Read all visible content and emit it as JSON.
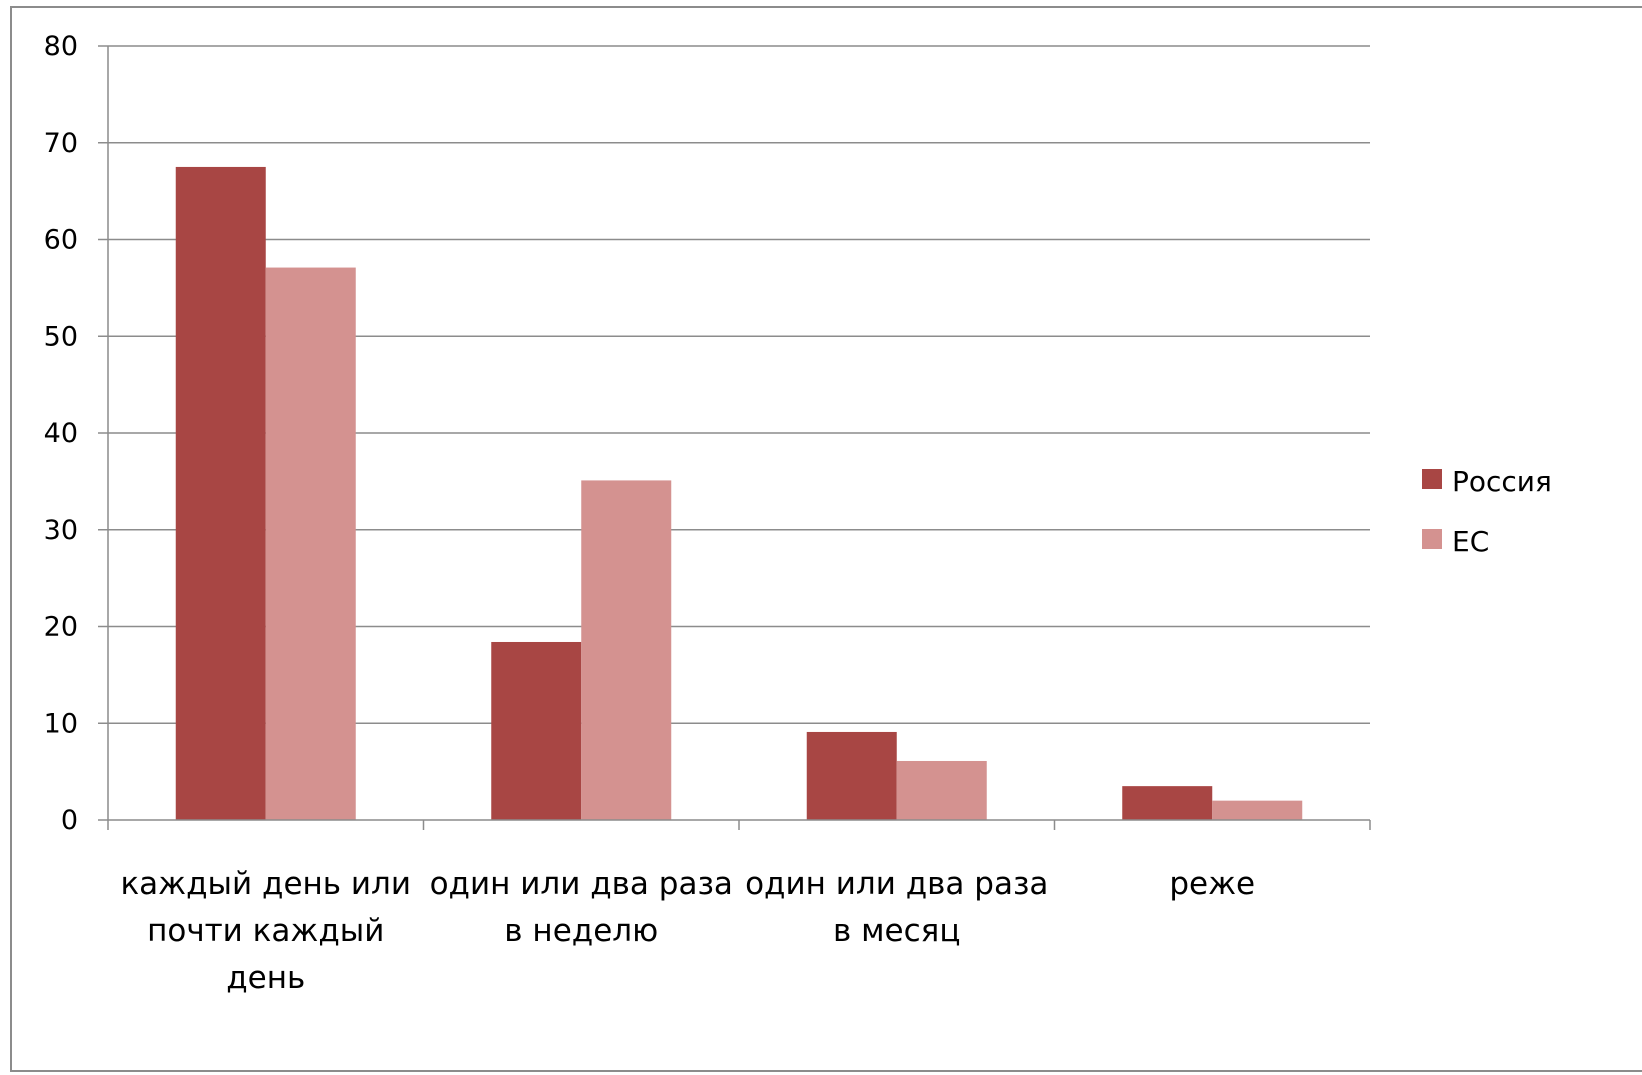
{
  "chart_data": {
    "type": "bar",
    "categories": [
      [
        "каждый день или",
        "почти каждый",
        "день"
      ],
      [
        "один или два раза",
        "в неделю"
      ],
      [
        "один или два раза",
        "в месяц"
      ],
      [
        "реже"
      ]
    ],
    "series": [
      {
        "name": "Россия",
        "color": "#a84644",
        "values": [
          67.5,
          18.4,
          9.1,
          3.5
        ]
      },
      {
        "name": "ЕС",
        "color": "#d49290",
        "values": [
          57.1,
          35.1,
          6.1,
          2.0
        ]
      }
    ],
    "title": "",
    "xlabel": "",
    "ylabel": "",
    "ylim": [
      0,
      80
    ],
    "yticks": [
      0,
      10,
      20,
      30,
      40,
      50,
      60,
      70,
      80
    ],
    "grid": true,
    "legend": "right",
    "gridline_color": "#8c8c8c",
    "axis_color": "#8c8c8c"
  }
}
